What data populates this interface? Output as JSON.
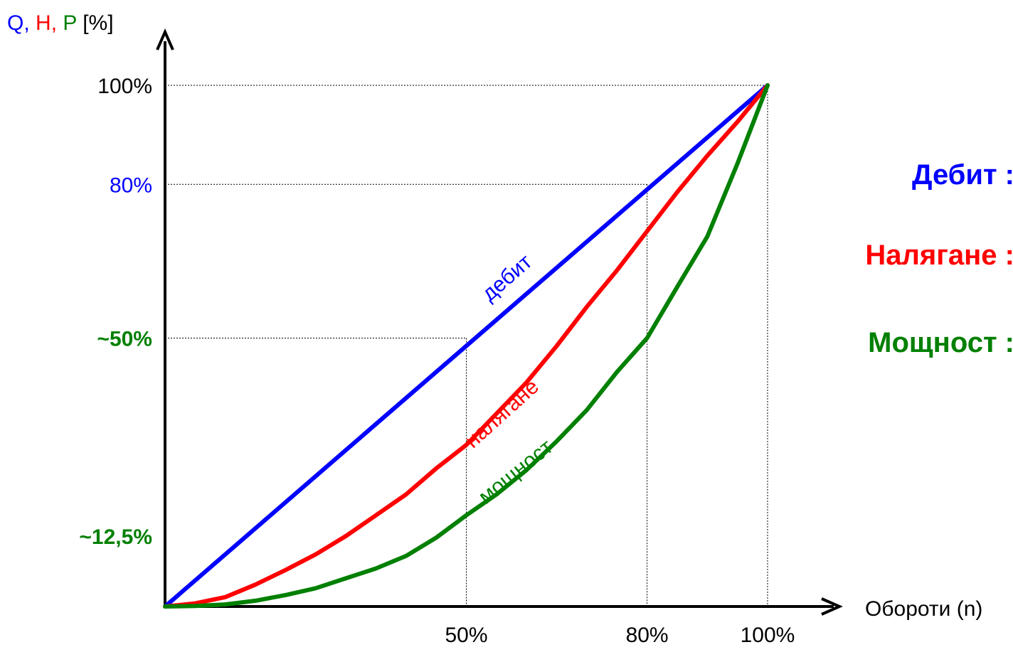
{
  "chart_data": {
    "type": "line",
    "ylabel_parts": [
      {
        "text": "Q",
        "color": "#0000ff"
      },
      {
        "text": ",",
        "color": "#0000ff"
      },
      {
        "text": "H",
        "color": "#ff0000"
      },
      {
        "text": ",",
        "color": "#ff0000"
      },
      {
        "text": "P",
        "color": "#008000"
      },
      {
        "text": "[%]",
        "color": "#000000"
      }
    ],
    "xlabel": "Обороти (n)",
    "xlim": [
      0,
      100
    ],
    "ylim": [
      0,
      100
    ],
    "x_ticks": [
      {
        "value": 50,
        "label": "50%"
      },
      {
        "value": 80,
        "label": "80%"
      },
      {
        "value": 100,
        "label": "100%"
      }
    ],
    "y_ticks": [
      {
        "value": 100,
        "label": "100%",
        "color": "#000000",
        "bold": false
      },
      {
        "value": 81,
        "label": "80%",
        "color": "#0000ff",
        "bold": false
      },
      {
        "value": 51.5,
        "label": "~50%",
        "color": "#008000",
        "bold": true
      },
      {
        "value": 13.5,
        "label": "~12,5%",
        "color": "#008000",
        "bold": true
      }
    ],
    "guides": [
      {
        "x": 50,
        "y": 51.5
      },
      {
        "x": 80,
        "y": 81
      },
      {
        "x": 100,
        "y": 100
      }
    ],
    "series": [
      {
        "name": "дебит",
        "color": "#0000ff",
        "x": [
          0,
          100
        ],
        "y": [
          0,
          100
        ]
      },
      {
        "name": "налягане",
        "color": "#ff0000",
        "x": [
          0,
          5,
          10,
          15,
          20,
          25,
          30,
          35,
          40,
          45,
          50,
          55,
          60,
          65,
          70,
          75,
          80,
          85,
          90,
          95,
          100
        ],
        "y": [
          0,
          0.6,
          1.8,
          4.2,
          7,
          10,
          13.5,
          17.5,
          21.5,
          26.5,
          31,
          37,
          43,
          50,
          57.5,
          64.5,
          72,
          79.5,
          86.5,
          93,
          100
        ]
      },
      {
        "name": "мощност",
        "color": "#008000",
        "x": [
          0,
          5,
          10,
          15,
          20,
          25,
          30,
          35,
          40,
          45,
          50,
          55,
          60,
          65,
          70,
          75,
          80,
          85,
          90,
          95,
          100
        ],
        "y": [
          0,
          0.1,
          0.4,
          1.1,
          2.2,
          3.5,
          5.4,
          7.3,
          9.7,
          13.2,
          17.5,
          21.5,
          26.2,
          31.7,
          37.7,
          45,
          51.5,
          61.3,
          71,
          85,
          100
        ]
      }
    ],
    "curve_labels": [
      {
        "text": "дебит",
        "color": "#0000ff"
      },
      {
        "text": "налягане",
        "color": "#ff0000"
      },
      {
        "text": "мощност",
        "color": "#008000"
      }
    ],
    "legend": [
      {
        "text": "Дебит :",
        "color": "#0000ff"
      },
      {
        "text": "Налягане :",
        "color": "#ff0000"
      },
      {
        "text": "Мощност :",
        "color": "#008000"
      }
    ],
    "grid": false
  }
}
